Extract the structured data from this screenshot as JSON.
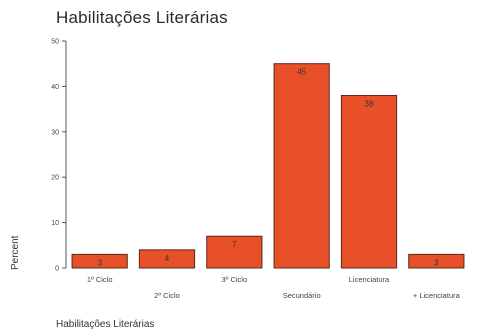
{
  "chart_data": {
    "type": "bar",
    "title": "Habilitações Literárias",
    "xlabel": "Habilitações Literárias",
    "ylabel": "Percent",
    "categories": [
      "1º Ciclo",
      "2º Ciclo",
      "3º Ciclo",
      "Secundário",
      "Licenciatura",
      "+ Licenciatura"
    ],
    "values": [
      3,
      4,
      7,
      45,
      38,
      3
    ],
    "data_labels": [
      "3",
      "4",
      "7",
      "45",
      "38",
      "3"
    ],
    "yticks": [
      0,
      10,
      20,
      30,
      40,
      50
    ],
    "ylim": [
      0,
      50
    ],
    "grid": false,
    "bar_color": "#e8502a",
    "bar_edge_color": "#5a2a1a"
  }
}
